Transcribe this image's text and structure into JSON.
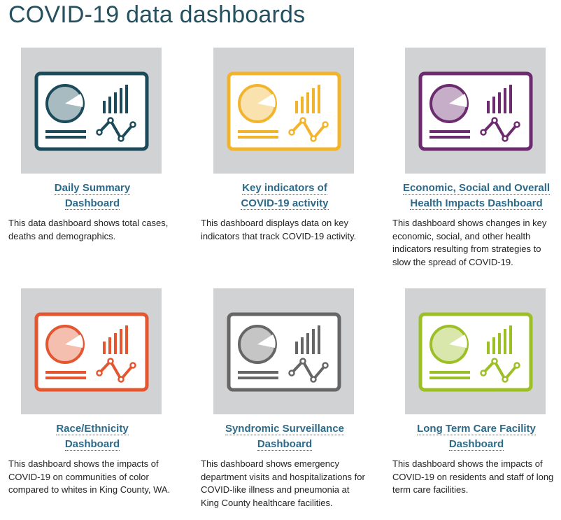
{
  "header": {
    "title": "COVID-19 data dashboards"
  },
  "cards": [
    {
      "title": [
        "Daily Summary",
        "Dashboard"
      ],
      "description": "This data dashboard shows total cases, deaths and demographics.",
      "color": "#1b4b5a"
    },
    {
      "title": [
        "Key indicators of",
        "COVID-19 activity"
      ],
      "description": "This dashboard displays data on key indicators that track COVID-19 activity.",
      "color": "#f3b42d"
    },
    {
      "title": [
        "Economic, Social and Overall",
        "Health Impacts Dashboard"
      ],
      "description": "This dashboard shows changes in key economic, social, and other health indicators resulting from strategies to slow the spread of COVID-19.",
      "color": "#6c2b6e"
    },
    {
      "title": [
        "Race/Ethnicity",
        "Dashboard"
      ],
      "description": "This dashboard shows the impacts of COVID-19 on communities of color compared to whites in King County, WA.",
      "color": "#e4562f"
    },
    {
      "title": [
        "Syndromic Surveillance",
        "Dashboard"
      ],
      "description": "This dashboard shows emergency department visits and hospitalizations for COVID-like illness and pneumonia at King County healthcare facilities.",
      "color": "#666666"
    },
    {
      "title": [
        "Long Term Care Facility",
        "Dashboard"
      ],
      "description": "This dashboard shows the impacts of COVID-19 on residents and staff of long term care facilities.",
      "color": "#9dbf26"
    }
  ]
}
